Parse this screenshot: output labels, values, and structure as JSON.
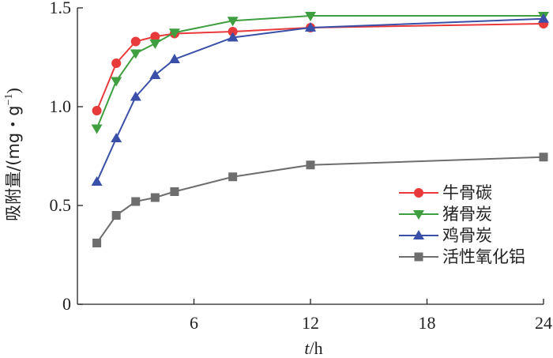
{
  "chart_data": {
    "type": "line",
    "xlabel_italic": "t",
    "xlabel_rest": "/h",
    "ylabel_main": "吸附量/(mg・g",
    "ylabel_sup": "−1",
    "ylabel_end": ")",
    "xlim": [
      0,
      24
    ],
    "ylim": [
      0,
      1.5
    ],
    "xticks": [
      6,
      12,
      18,
      24
    ],
    "yticks": [
      0,
      0.5,
      1.0,
      1.5
    ],
    "xtick_labels": [
      "6",
      "12",
      "18",
      "24"
    ],
    "ytick_labels": [
      "0",
      "0.5",
      "1.0",
      "1.5"
    ],
    "grid": false,
    "legend_position": "bottom-right",
    "x": [
      1,
      2,
      3,
      4,
      5,
      8,
      12,
      24
    ],
    "series": [
      {
        "name": "牛骨碳",
        "color": "#e83a3a",
        "marker": "circle",
        "values": [
          0.98,
          1.22,
          1.33,
          1.355,
          1.37,
          1.38,
          1.4,
          1.42
        ]
      },
      {
        "name": "猪骨炭",
        "color": "#3f9e3f",
        "marker": "triangle-down",
        "values": [
          0.89,
          1.13,
          1.27,
          1.32,
          1.375,
          1.435,
          1.46,
          1.46
        ]
      },
      {
        "name": "鸡骨炭",
        "color": "#3a50a8",
        "marker": "triangle-up",
        "values": [
          0.62,
          0.84,
          1.05,
          1.16,
          1.24,
          1.35,
          1.4,
          1.445
        ]
      },
      {
        "name": "活性氧化铝",
        "color": "#6e6e6e",
        "marker": "square",
        "values": [
          0.31,
          0.45,
          0.52,
          0.54,
          0.57,
          0.645,
          0.705,
          0.745
        ]
      }
    ]
  }
}
